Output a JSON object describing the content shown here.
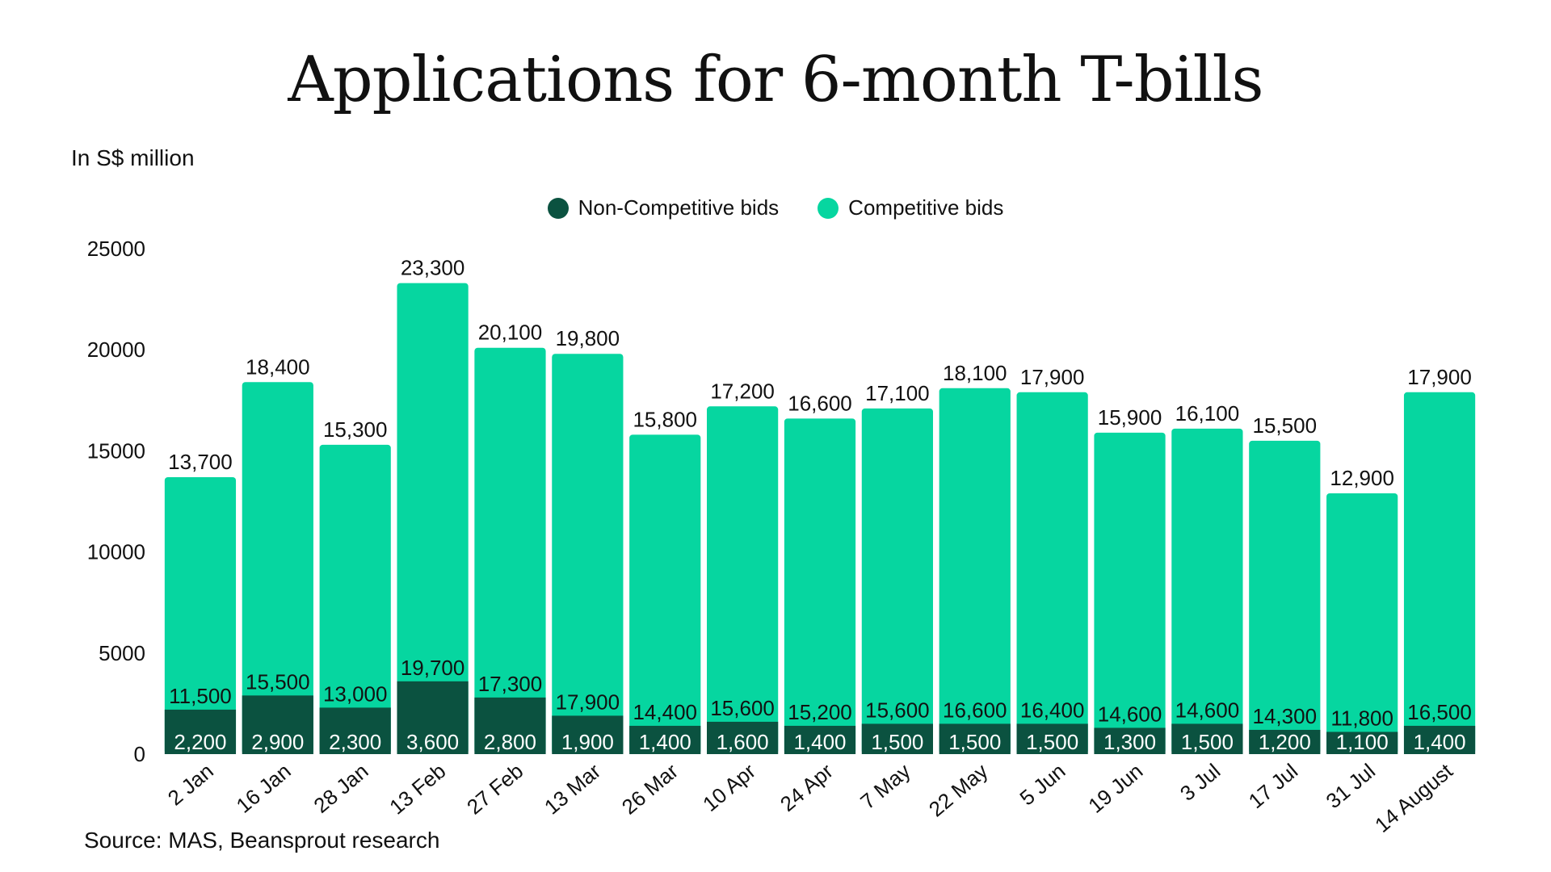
{
  "chart_data": {
    "type": "bar",
    "stacked": true,
    "title": "Applications for 6-month T-bills",
    "ylabel": "In S$ million",
    "source": "Source: MAS, Beansprout research",
    "ylim": [
      0,
      25000
    ],
    "yticks": [
      0,
      5000,
      10000,
      15000,
      20000,
      25000
    ],
    "categories": [
      "2 Jan",
      "16 Jan",
      "28 Jan",
      "13 Feb",
      "27 Feb",
      "13 Mar",
      "26 Mar",
      "10 Apr",
      "24 Apr",
      "7 May",
      "22 May",
      "5 Jun",
      "19 Jun",
      "3 Jul",
      "17 Jul",
      "31 Jul",
      "14 August"
    ],
    "series": [
      {
        "name": "Non-Competitive bids",
        "color": "#0b5240",
        "values": [
          2200,
          2900,
          2300,
          3600,
          2800,
          1900,
          1400,
          1600,
          1400,
          1500,
          1500,
          1500,
          1300,
          1500,
          1200,
          1100,
          1400
        ],
        "labels": [
          "2,200",
          "2,900",
          "2,300",
          "3,600",
          "2,800",
          "1,900",
          "1,400",
          "1,600",
          "1,400",
          "1,500",
          "1,500",
          "1,500",
          "1,300",
          "1,500",
          "1,200",
          "1,100",
          "1,400"
        ]
      },
      {
        "name": "Competitive bids",
        "color": "#06d6a0",
        "values": [
          11500,
          15500,
          13000,
          19700,
          17300,
          17900,
          14400,
          15600,
          15200,
          15600,
          16600,
          16400,
          14600,
          14600,
          14300,
          11800,
          16500
        ],
        "labels": [
          "11,500",
          "15,500",
          "13,000",
          "19,700",
          "17,300",
          "17,900",
          "14,400",
          "15,600",
          "15,200",
          "15,600",
          "16,600",
          "16,400",
          "14,600",
          "14,600",
          "14,300",
          "11,800",
          "16,500"
        ]
      }
    ],
    "totals": [
      13700,
      18400,
      15300,
      23300,
      20100,
      19800,
      15800,
      17200,
      16600,
      17100,
      18100,
      17900,
      15900,
      16100,
      15500,
      12900,
      17900
    ],
    "total_labels": [
      "13,700",
      "18,400",
      "15,300",
      "23,300",
      "20,100",
      "19,800",
      "15,800",
      "17,200",
      "16,600",
      "17,100",
      "18,100",
      "17,900",
      "15,900",
      "16,100",
      "15,500",
      "12,900",
      "17,900"
    ]
  }
}
